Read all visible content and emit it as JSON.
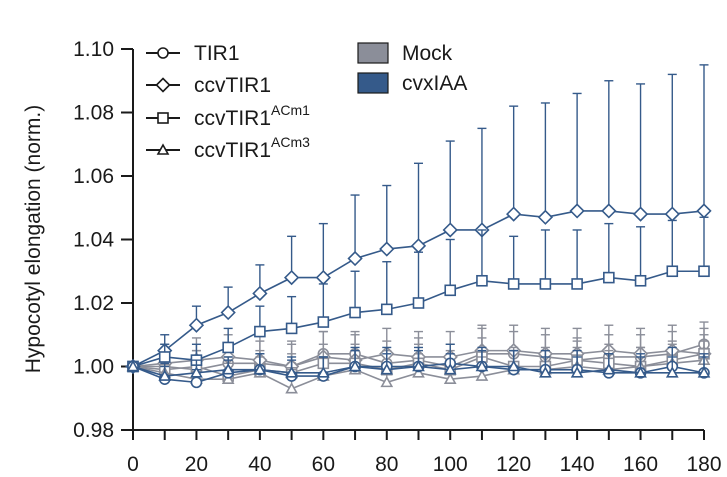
{
  "chart_data": {
    "type": "line",
    "xlabel": "",
    "ylabel": "Hypocotyl elongation (norm.)",
    "xlim": [
      0,
      180
    ],
    "ylim": [
      0.98,
      1.1
    ],
    "xticks": [
      0,
      20,
      40,
      60,
      80,
      100,
      120,
      140,
      160,
      180
    ],
    "xtick_labels": [
      "0",
      "20",
      "40",
      "60",
      "80",
      "100",
      "120",
      "140",
      "160",
      "180"
    ],
    "yticks": [
      0.98,
      1.0,
      1.02,
      1.04,
      1.06,
      1.08,
      1.1
    ],
    "ytick_labels": [
      "0.98",
      "1.00",
      "1.02",
      "1.04",
      "1.06",
      "1.08",
      "1.10"
    ],
    "x": [
      0,
      10,
      20,
      30,
      40,
      50,
      60,
      70,
      80,
      90,
      100,
      110,
      120,
      130,
      140,
      150,
      160,
      170,
      180
    ],
    "colors": {
      "mock": "#8b8e99",
      "cvxIAA": "#355a8a",
      "axis": "#1a1a1a"
    },
    "legend": {
      "genotypes": [
        {
          "label": "TIR1",
          "superscript": "",
          "marker": "circle"
        },
        {
          "label": "ccvTIR1",
          "superscript": "",
          "marker": "diamond"
        },
        {
          "label": "ccvTIR1",
          "superscript": "ACm1",
          "marker": "square"
        },
        {
          "label": "ccvTIR1",
          "superscript": "ACm3",
          "marker": "triangle"
        }
      ],
      "treatments": [
        {
          "label": "Mock",
          "color": "#8b8e99"
        },
        {
          "label": "cvxIAA",
          "color": "#355a8a"
        }
      ]
    },
    "series": [
      {
        "name": "ccvTIR1 cvxIAA",
        "treatment": "cvxIAA",
        "marker": "diamond",
        "values": [
          1.0,
          1.005,
          1.013,
          1.017,
          1.023,
          1.028,
          1.028,
          1.034,
          1.037,
          1.038,
          1.043,
          1.043,
          1.048,
          1.047,
          1.049,
          1.049,
          1.048,
          1.048,
          1.049
        ],
        "err": [
          0,
          0.005,
          0.006,
          0.008,
          0.009,
          0.013,
          0.017,
          0.02,
          0.02,
          0.026,
          0.028,
          0.032,
          0.034,
          0.036,
          0.037,
          0.041,
          0.041,
          0.044,
          0.046
        ]
      },
      {
        "name": "ccvTIR1ACm1 cvxIAA",
        "treatment": "cvxIAA",
        "marker": "square",
        "values": [
          1.0,
          1.003,
          1.002,
          1.006,
          1.011,
          1.012,
          1.014,
          1.017,
          1.018,
          1.02,
          1.024,
          1.027,
          1.026,
          1.026,
          1.026,
          1.028,
          1.027,
          1.03,
          1.03
        ],
        "err": [
          0,
          0.004,
          0.005,
          0.006,
          0.008,
          0.01,
          0.012,
          0.013,
          0.015,
          0.016,
          0.016,
          0.016,
          0.015,
          0.017,
          0.017,
          0.017,
          0.017,
          0.016,
          0.017
        ]
      },
      {
        "name": "TIR1 cvxIAA",
        "treatment": "cvxIAA",
        "marker": "circle",
        "values": [
          1.0,
          0.996,
          0.995,
          0.998,
          0.999,
          0.997,
          0.997,
          1.0,
          1.0,
          1.0,
          1.001,
          1.0,
          0.999,
          0.999,
          0.999,
          0.998,
          0.998,
          1.0,
          0.998
        ],
        "err": [
          0,
          0.004,
          0.004,
          0.004,
          0.005,
          0.005,
          0.006,
          0.006,
          0.006,
          0.006,
          0.006,
          0.006,
          0.006,
          0.006,
          0.006,
          0.006,
          0.006,
          0.006,
          0.006
        ]
      },
      {
        "name": "ccvTIR1ACm3 cvxIAA",
        "treatment": "cvxIAA",
        "marker": "triangle",
        "values": [
          1.0,
          0.997,
          0.998,
          0.999,
          0.999,
          0.998,
          0.998,
          1.0,
          0.999,
          1.0,
          0.999,
          1.0,
          1.0,
          0.998,
          0.998,
          0.999,
          0.998,
          0.998,
          0.998
        ],
        "err": [
          0,
          0.004,
          0.004,
          0.004,
          0.005,
          0.005,
          0.005,
          0.005,
          0.005,
          0.005,
          0.005,
          0.005,
          0.005,
          0.005,
          0.005,
          0.005,
          0.005,
          0.005,
          0.005
        ]
      },
      {
        "name": "TIR1 Mock",
        "treatment": "mock",
        "marker": "circle",
        "values": [
          1.0,
          1.0,
          0.999,
          1.001,
          1.001,
          1.0,
          1.004,
          1.004,
          1.001,
          1.002,
          1.0,
          1.004,
          1.004,
          1.003,
          1.002,
          1.003,
          1.003,
          1.004,
          1.007
        ],
        "err": [
          0,
          0.005,
          0.006,
          0.006,
          0.007,
          0.007,
          0.007,
          0.007,
          0.007,
          0.007,
          0.007,
          0.008,
          0.007,
          0.007,
          0.007,
          0.007,
          0.007,
          0.007,
          0.007
        ]
      },
      {
        "name": "ccvTIR1 Mock",
        "treatment": "mock",
        "marker": "diamond",
        "values": [
          1.0,
          1.001,
          1.002,
          1.003,
          1.002,
          1.0,
          1.003,
          1.002,
          1.004,
          1.003,
          1.003,
          1.005,
          1.005,
          1.004,
          1.004,
          1.005,
          1.004,
          1.005,
          1.004
        ],
        "err": [
          0,
          0.006,
          0.007,
          0.007,
          0.008,
          0.008,
          0.008,
          0.008,
          0.008,
          0.008,
          0.008,
          0.008,
          0.008,
          0.008,
          0.008,
          0.008,
          0.008,
          0.008,
          0.008
        ]
      },
      {
        "name": "ccvTIR1ACm1 Mock",
        "treatment": "mock",
        "marker": "square",
        "values": [
          1.0,
          0.999,
          1.0,
          0.997,
          0.999,
          0.998,
          1.001,
          1.001,
          0.999,
          1.001,
          0.999,
          1.003,
          1.0,
          1.0,
          1.002,
          1.001,
          1.0,
          1.002,
          1.004
        ],
        "err": [
          0,
          0.005,
          0.005,
          0.006,
          0.006,
          0.006,
          0.006,
          0.006,
          0.006,
          0.006,
          0.006,
          0.006,
          0.006,
          0.006,
          0.006,
          0.006,
          0.006,
          0.006,
          0.006
        ]
      },
      {
        "name": "ccvTIR1ACm3 Mock",
        "treatment": "mock",
        "marker": "triangle",
        "values": [
          1.0,
          0.998,
          0.996,
          0.996,
          0.998,
          0.993,
          0.997,
          0.999,
          0.995,
          0.998,
          0.996,
          0.997,
          0.999,
          0.999,
          1.0,
          0.999,
          1.0,
          1.001,
          1.002
        ],
        "err": [
          0,
          0.005,
          0.005,
          0.005,
          0.005,
          0.006,
          0.006,
          0.006,
          0.006,
          0.006,
          0.006,
          0.006,
          0.006,
          0.006,
          0.006,
          0.006,
          0.006,
          0.006,
          0.006
        ]
      }
    ]
  }
}
